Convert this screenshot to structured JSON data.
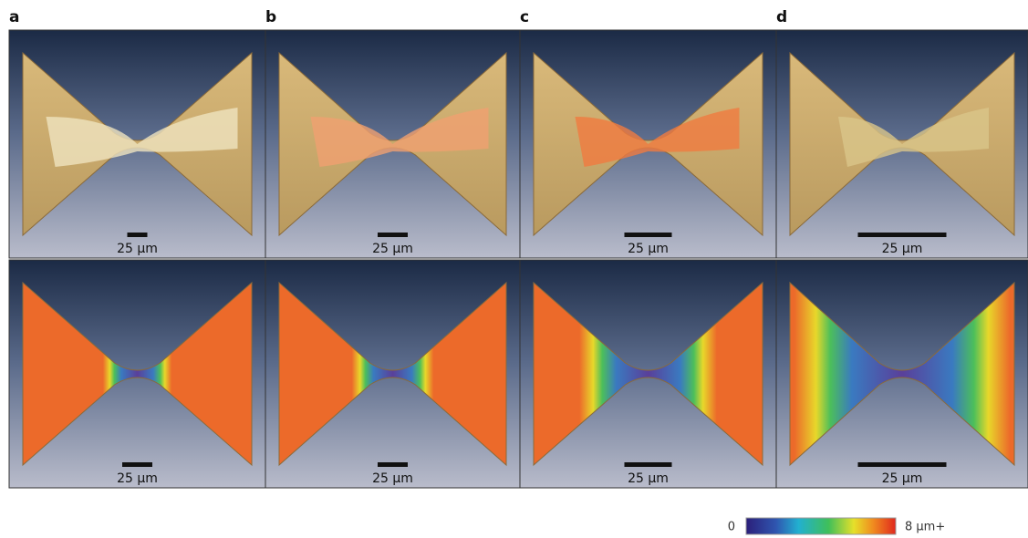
{
  "panels": [
    {
      "label": "a",
      "top_scale": "25 µm",
      "bottom_scale": "25 µm"
    },
    {
      "label": "b",
      "top_scale": "25 µm",
      "bottom_scale": "25 µm"
    },
    {
      "label": "c",
      "top_scale": "25 µm",
      "bottom_scale": "25 µm"
    },
    {
      "label": "d",
      "top_scale": "25 µm",
      "bottom_scale": "25 µm"
    }
  ],
  "colorbar": {
    "min_label": "0",
    "max_label": "8 µm+"
  }
}
